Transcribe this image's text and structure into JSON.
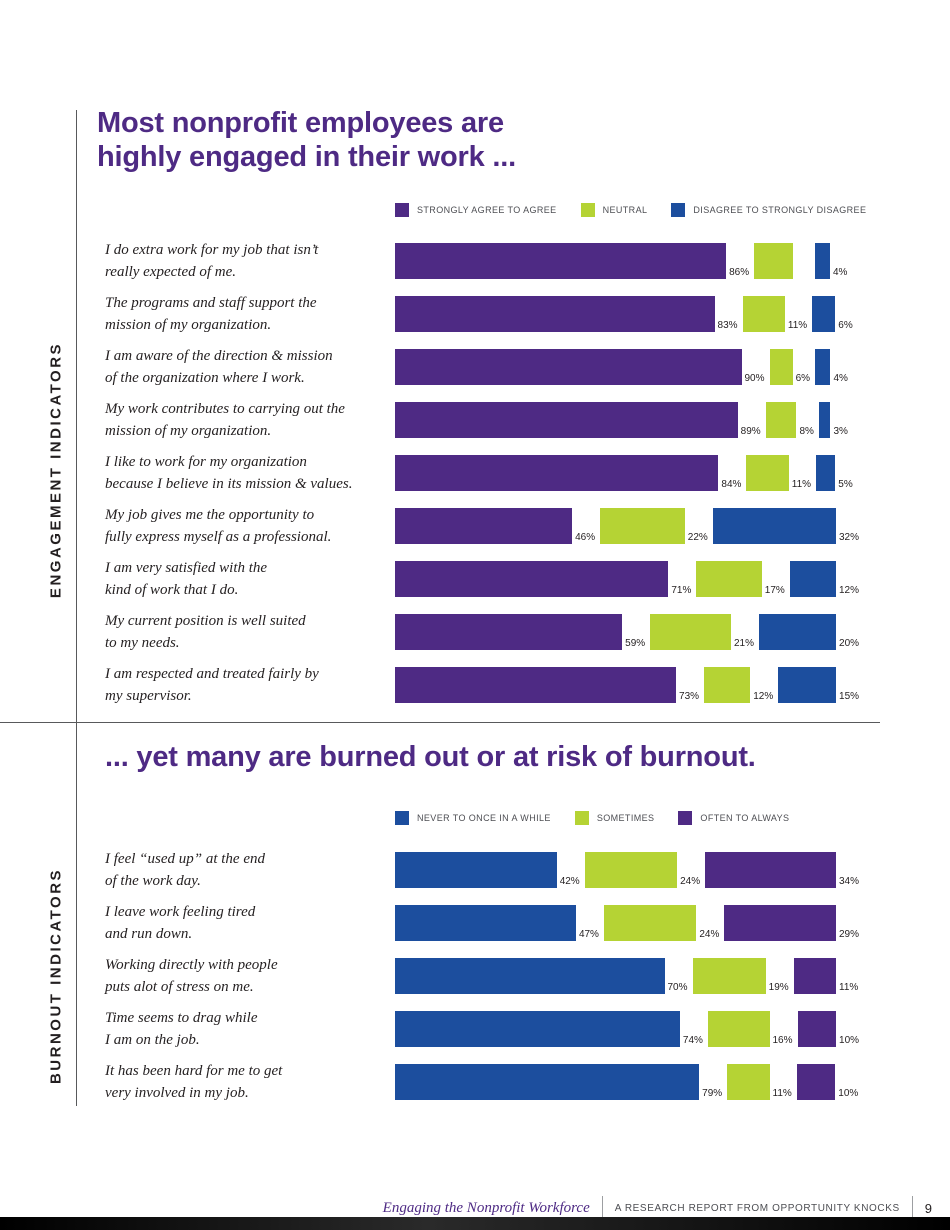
{
  "colors": {
    "purple": "#4e2a84",
    "lime": "#b5d334",
    "blue": "#1c4e9e"
  },
  "engagement": {
    "section_label": "ENGAGEMENT INDICATORS",
    "title_line1": "Most nonprofit employees are",
    "title_line2": "highly engaged in their work ...",
    "legend": [
      {
        "label": "STRONGLY AGREE TO AGREE"
      },
      {
        "label": "NEUTRAL"
      },
      {
        "label": "DISAGREE TO STRONGLY DISAGREE"
      }
    ],
    "rows": [
      {
        "line1": "I do extra work for my job that isn’t",
        "line2": "really expected of me.",
        "values": [
          86,
          10,
          4
        ],
        "labels": [
          "86%",
          "",
          "4%"
        ]
      },
      {
        "line1": "The programs and staff support the",
        "line2": "mission of my organization.",
        "values": [
          83,
          11,
          6
        ],
        "labels": [
          "83%",
          "11%",
          "6%"
        ]
      },
      {
        "line1": "I am aware of the direction & mission",
        "line2": "of the organization where I work.",
        "values": [
          90,
          6,
          4
        ],
        "labels": [
          "90%",
          "6%",
          "4%"
        ]
      },
      {
        "line1": "My work contributes to carrying out the",
        "line2": "mission of my organization.",
        "values": [
          89,
          8,
          3
        ],
        "labels": [
          "89%",
          "8%",
          "3%"
        ]
      },
      {
        "line1": "I like to work for my organization",
        "line2": "because I believe in its mission & values.",
        "values": [
          84,
          11,
          5
        ],
        "labels": [
          "84%",
          "11%",
          "5%"
        ]
      },
      {
        "line1": "My job gives me the opportunity to",
        "line2": "fully express myself as a professional.",
        "values": [
          46,
          22,
          32
        ],
        "labels": [
          "46%",
          "22%",
          "32%"
        ]
      },
      {
        "line1": "I am very satisfied with the",
        "line2": "kind of work that I do.",
        "values": [
          71,
          17,
          12
        ],
        "labels": [
          "71%",
          "17%",
          "12%"
        ]
      },
      {
        "line1": "My current position is well suited",
        "line2": "to my needs.",
        "values": [
          59,
          21,
          20
        ],
        "labels": [
          "59%",
          "21%",
          "20%"
        ]
      },
      {
        "line1": "I am respected and treated fairly by",
        "line2": "my supervisor.",
        "values": [
          73,
          12,
          15
        ],
        "labels": [
          "73%",
          "12%",
          "15%"
        ]
      }
    ]
  },
  "burnout": {
    "section_label": "BURNOUT INDICATORS",
    "title": "... yet many are burned out or at risk of burnout.",
    "legend": [
      {
        "label": "NEVER TO ONCE IN A WHILE"
      },
      {
        "label": "SOMETIMES"
      },
      {
        "label": "OFTEN TO ALWAYS"
      }
    ],
    "rows": [
      {
        "line1": "I feel “used up” at the end",
        "line2": "of the work day.",
        "values": [
          42,
          24,
          34
        ],
        "labels": [
          "42%",
          "24%",
          "34%"
        ]
      },
      {
        "line1": "I leave work feeling tired",
        "line2": "and run down.",
        "values": [
          47,
          24,
          29
        ],
        "labels": [
          "47%",
          "24%",
          "29%"
        ]
      },
      {
        "line1": "Working directly with people",
        "line2": "puts alot of stress on me.",
        "values": [
          70,
          19,
          11
        ],
        "labels": [
          "70%",
          "19%",
          "11%"
        ]
      },
      {
        "line1": "Time seems to drag while",
        "line2": "I am on the job.",
        "values": [
          74,
          16,
          10
        ],
        "labels": [
          "74%",
          "16%",
          "10%"
        ]
      },
      {
        "line1": "It has been hard for me to get",
        "line2": "very involved in my job.",
        "values": [
          79,
          11,
          10
        ],
        "labels": [
          "79%",
          "11%",
          "10%"
        ]
      }
    ]
  },
  "footer": {
    "report_title": "Engaging the Nonprofit Workforce",
    "report_label": "A RESEARCH REPORT FROM OPPORTUNITY KNOCKS",
    "page_number": "9"
  },
  "chart_data": [
    {
      "type": "bar",
      "orientation": "horizontal",
      "title": "Most nonprofit employees are highly engaged in their work ...",
      "group_label": "ENGAGEMENT INDICATORS",
      "unit": "%",
      "xlim": [
        0,
        100
      ],
      "legend_position": "top",
      "categories": [
        "I do extra work for my job that isn’t really expected of me.",
        "The programs and staff support the mission of my organization.",
        "I am aware of the direction & mission of the organization where I work.",
        "My work contributes to carrying out the mission of my organization.",
        "I like to work for my organization because I believe in its mission & values.",
        "My job gives me the opportunity to fully express myself as a professional.",
        "I am very satisfied with the kind of work that I do.",
        "My current position is well suited to my needs.",
        "I am respected and treated fairly by my supervisor."
      ],
      "series": [
        {
          "name": "STRONGLY AGREE TO AGREE",
          "color": "#4e2a84",
          "values": [
            86,
            83,
            90,
            89,
            84,
            46,
            71,
            59,
            73
          ]
        },
        {
          "name": "NEUTRAL",
          "color": "#b5d334",
          "values": [
            10,
            11,
            6,
            8,
            11,
            22,
            17,
            21,
            12
          ]
        },
        {
          "name": "DISAGREE TO STRONGLY DISAGREE",
          "color": "#1c4e9e",
          "values": [
            4,
            6,
            4,
            3,
            5,
            32,
            12,
            20,
            15
          ]
        }
      ]
    },
    {
      "type": "bar",
      "orientation": "horizontal",
      "title": "... yet many are burned out or at risk of burnout.",
      "group_label": "BURNOUT INDICATORS",
      "unit": "%",
      "xlim": [
        0,
        100
      ],
      "legend_position": "top",
      "categories": [
        "I feel “used up” at the end of the work day.",
        "I leave work feeling tired and run down.",
        "Working directly with people puts alot of stress on me.",
        "Time seems to drag while I am on the job.",
        "It has been hard for me to get very involved in my job."
      ],
      "series": [
        {
          "name": "NEVER TO ONCE IN A WHILE",
          "color": "#1c4e9e",
          "values": [
            42,
            47,
            70,
            74,
            79
          ]
        },
        {
          "name": "SOMETIMES",
          "color": "#b5d334",
          "values": [
            24,
            24,
            19,
            16,
            11
          ]
        },
        {
          "name": "OFTEN TO ALWAYS",
          "color": "#4e2a84",
          "values": [
            34,
            29,
            11,
            10,
            10
          ]
        }
      ]
    }
  ]
}
